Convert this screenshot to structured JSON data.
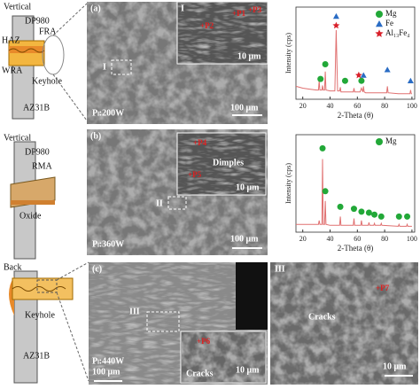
{
  "rows": [
    {
      "schematic": {
        "view": "Vertical",
        "top": "DP980",
        "zone1": "FRA",
        "zone2": "HAZ",
        "zone3": "WRA",
        "zone4": "Keyhole",
        "bottom": "AZ31B"
      },
      "micrograph": {
        "panel": "(a)",
        "box": "I",
        "inset": "I",
        "points": [
          "+P1",
          "+P2",
          "+P3"
        ],
        "inset_scale": "10 μm",
        "power": "Pₗ:200W",
        "scale": "100 μm"
      }
    },
    {
      "schematic": {
        "view": "Vertical",
        "top": "DP980",
        "zone1": "RMA",
        "zone2": "Oxide"
      },
      "micrograph": {
        "panel": "(b)",
        "box": "II",
        "feature": "Dimples",
        "points": [
          "+P4",
          "+P5"
        ],
        "inset_scale": "10 μm",
        "power": "Pₗ:360W",
        "scale": "100 μm"
      }
    },
    {
      "schematic": {
        "view": "Back",
        "zone1": "Keyhole",
        "bottom": "AZ31B"
      },
      "micrograph": {
        "panel": "(c)",
        "box": "III",
        "points": [
          "+P6"
        ],
        "feature": "Cracks",
        "inset_scale": "10 μm",
        "power": "Pₗ:440W",
        "scale": "100 μm"
      },
      "detail": {
        "panel": "III",
        "points": [
          "+P7"
        ],
        "feature": "Cracks",
        "scale": "10 μm"
      }
    }
  ],
  "chart_data": [
    {
      "type": "line",
      "x_label": "2-Theta (θ)",
      "y_label": "Intensity (cps)",
      "xlim": [
        15,
        102
      ],
      "ylim": [
        0,
        100
      ],
      "xticks": [
        20,
        40,
        60,
        80,
        100
      ],
      "trace": {
        "color": "#e07070",
        "x": [
          15,
          20,
          25,
          30,
          31.5,
          32,
          32.5,
          34,
          34.5,
          35,
          36,
          36.5,
          37,
          40,
          43.5,
          44.5,
          45.5,
          47,
          47.5,
          48,
          55,
          57,
          57.5,
          58,
          62,
          63,
          64,
          64.5,
          65,
          66,
          75,
          81.5,
          82,
          82.5,
          90,
          98.5,
          99,
          99.5,
          100
        ],
        "values": [
          14,
          12,
          11,
          10,
          10,
          20,
          10,
          10,
          15,
          10,
          10,
          30,
          10,
          9,
          9,
          75,
          9,
          9,
          13,
          8,
          8,
          8,
          12,
          8,
          8,
          12,
          8,
          14,
          8,
          7,
          7,
          7,
          14,
          7,
          6,
          6,
          10,
          6,
          6
        ]
      },
      "series": [
        {
          "name": "Mg",
          "color": "#22a838",
          "marker": "circle",
          "x": [
            33,
            36.5,
            51,
            63
          ],
          "values": [
            22,
            38,
            20,
            20
          ]
        },
        {
          "name": "Fe",
          "color": "#2a6cc4",
          "marker": "triangle",
          "x": [
            44.5,
            64.5,
            82,
            99
          ],
          "values": [
            90,
            26,
            32,
            20
          ]
        },
        {
          "name": "Al₁₃Fe₄",
          "color": "#d8202a",
          "marker": "star",
          "x": [
            44.5,
            61
          ],
          "values": [
            80,
            26
          ]
        }
      ]
    },
    {
      "type": "line",
      "x_label": "2-Theta (θ)",
      "y_label": "Intensity (cps)",
      "xlim": [
        15,
        102
      ],
      "ylim": [
        0,
        100
      ],
      "xticks": [
        20,
        40,
        60,
        80,
        100
      ],
      "trace": {
        "color": "#e07070",
        "x": [
          15,
          20,
          25,
          30,
          31.5,
          32,
          32.5,
          34,
          34.5,
          35,
          36,
          36.5,
          37,
          40,
          47,
          47.5,
          48,
          57,
          57.5,
          58,
          62.5,
          63,
          63.5,
          68,
          68.5,
          69,
          70,
          72,
          72.5,
          73,
          77,
          77.5,
          78,
          90,
          90.5,
          91,
          96,
          96.5,
          97,
          100
        ],
        "values": [
          8,
          8,
          8,
          8,
          8,
          12,
          8,
          8,
          75,
          8,
          8,
          32,
          8,
          7,
          7,
          16,
          7,
          7,
          14,
          7,
          7,
          12,
          7,
          7,
          10,
          7,
          7,
          7,
          9,
          7,
          7,
          9,
          7,
          6,
          8,
          6,
          6,
          8,
          6,
          6
        ]
      },
      "series": [
        {
          "name": "Mg",
          "color": "#22a838",
          "marker": "circle",
          "x": [
            34.5,
            36.5,
            47.5,
            57.5,
            63,
            68.5,
            72.5,
            77.5,
            90.5,
            96.5
          ],
          "values": [
            86,
            42,
            26,
            24,
            21,
            20,
            18,
            16,
            16,
            16
          ]
        }
      ]
    }
  ]
}
